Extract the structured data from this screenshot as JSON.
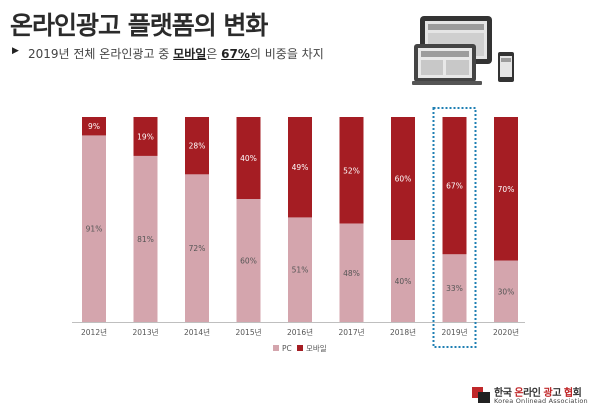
{
  "header": {
    "title": "온라인광고 플랫폼의 변화",
    "subtitle_pre": "2019년 전체 온라인광고 중 ",
    "subtitle_em1": "모바일",
    "subtitle_mid": "은 ",
    "subtitle_em2": "67%",
    "subtitle_post": "의 비중을 차지"
  },
  "logo": {
    "name_part1": "한국 ",
    "name_red1": "온",
    "name_part2": "라인 ",
    "name_red2": "광",
    "name_part3": "고 ",
    "name_red3": "협",
    "name_part4": "회",
    "english": "Korea Onlinead Association"
  },
  "colors": {
    "pc": "#d4a5ad",
    "mobile": "#a51d23",
    "highlight_border": "#1f7fb3"
  },
  "chart_data": {
    "type": "bar",
    "stacked": true,
    "categories": [
      "2012년",
      "2013년",
      "2014년",
      "2015년",
      "2016년",
      "2017년",
      "2018년",
      "2019년",
      "2020년"
    ],
    "series": [
      {
        "name": "PC",
        "values": [
          91,
          81,
          72,
          60,
          51,
          48,
          40,
          33,
          30
        ]
      },
      {
        "name": "모바일",
        "values": [
          9,
          19,
          28,
          40,
          49,
          52,
          60,
          67,
          70
        ]
      }
    ],
    "value_suffix": "%",
    "ylim": [
      0,
      100
    ],
    "grid": false,
    "legend": "bottom",
    "highlight_category": "2019년"
  }
}
